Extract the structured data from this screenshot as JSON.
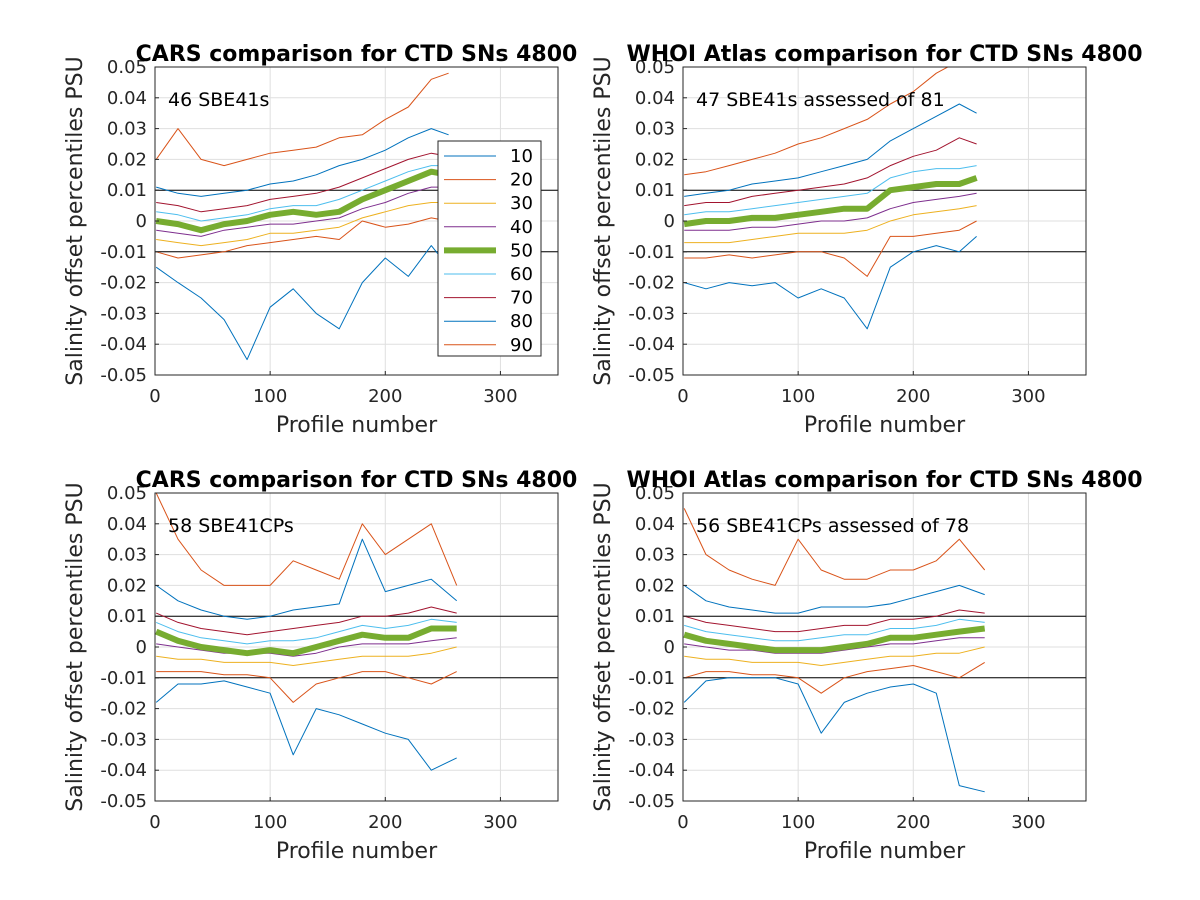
{
  "figure": {
    "background": "#ffffff"
  },
  "percentile_colors": {
    "10": "#0072BD",
    "20": "#D95319",
    "30": "#EDB120",
    "40": "#7E2F8E",
    "50": "#77AC30",
    "60": "#4DBEEE",
    "70": "#A2142F",
    "80": "#0072BD",
    "90": "#D95319"
  },
  "chart_data": [
    {
      "type": "line",
      "title": "CARS comparison for CTD SNs 4800",
      "annotation": "46 SBE41s",
      "xlabel": "Profile number",
      "ylabel": "Salinity offset percentiles PSU",
      "xlim": [
        0,
        350
      ],
      "ylim": [
        -0.05,
        0.05
      ],
      "xticks": [
        "0",
        "100",
        "200",
        "300"
      ],
      "yticks": [
        "-0.05",
        "-0.04",
        "-0.03",
        "-0.02",
        "-0.01",
        "0",
        "0.01",
        "0.02",
        "0.03",
        "0.04",
        "0.05"
      ],
      "grid": true,
      "reference_lines": [
        -0.01,
        0.01
      ],
      "legend": {
        "placement": "inside-right",
        "entries": [
          "10",
          "20",
          "30",
          "40",
          "50",
          "60",
          "70",
          "80",
          "90"
        ]
      },
      "x": [
        1,
        20,
        40,
        60,
        80,
        100,
        120,
        140,
        160,
        180,
        200,
        220,
        240,
        255
      ],
      "series": [
        {
          "name": "10",
          "values": [
            -0.015,
            -0.02,
            -0.025,
            -0.032,
            -0.045,
            -0.028,
            -0.022,
            -0.03,
            -0.035,
            -0.02,
            -0.012,
            -0.018,
            -0.008,
            -0.015
          ]
        },
        {
          "name": "20",
          "values": [
            -0.01,
            -0.012,
            -0.011,
            -0.01,
            -0.008,
            -0.007,
            -0.006,
            -0.005,
            -0.006,
            0.0,
            -0.002,
            -0.001,
            0.001,
            0.0
          ]
        },
        {
          "name": "30",
          "values": [
            -0.006,
            -0.007,
            -0.008,
            -0.007,
            -0.006,
            -0.004,
            -0.004,
            -0.003,
            -0.002,
            0.001,
            0.003,
            0.005,
            0.006,
            0.006
          ]
        },
        {
          "name": "40",
          "values": [
            -0.003,
            -0.004,
            -0.005,
            -0.003,
            -0.002,
            -0.001,
            -0.001,
            0.0,
            0.001,
            0.004,
            0.006,
            0.009,
            0.011,
            0.011
          ]
        },
        {
          "name": "50",
          "values": [
            0.0,
            -0.001,
            -0.003,
            -0.001,
            0.0,
            0.002,
            0.003,
            0.002,
            0.003,
            0.007,
            0.01,
            0.013,
            0.016,
            0.015
          ]
        },
        {
          "name": "60",
          "values": [
            0.003,
            0.002,
            0.0,
            0.001,
            0.002,
            0.004,
            0.005,
            0.005,
            0.007,
            0.01,
            0.013,
            0.016,
            0.018,
            0.018
          ]
        },
        {
          "name": "70",
          "values": [
            0.006,
            0.005,
            0.003,
            0.004,
            0.005,
            0.007,
            0.008,
            0.009,
            0.011,
            0.014,
            0.017,
            0.02,
            0.022,
            0.021
          ]
        },
        {
          "name": "80",
          "values": [
            0.011,
            0.009,
            0.008,
            0.009,
            0.01,
            0.012,
            0.013,
            0.015,
            0.018,
            0.02,
            0.023,
            0.027,
            0.03,
            0.028
          ]
        },
        {
          "name": "90",
          "values": [
            0.02,
            0.03,
            0.02,
            0.018,
            0.02,
            0.022,
            0.023,
            0.024,
            0.027,
            0.028,
            0.033,
            0.037,
            0.046,
            0.048
          ]
        }
      ]
    },
    {
      "type": "line",
      "title": "WHOI Atlas comparison for CTD SNs 4800",
      "annotation": "47 SBE41s assessed of 81",
      "xlabel": "Profile number",
      "ylabel": "Salinity offset percentiles PSU",
      "xlim": [
        0,
        350
      ],
      "ylim": [
        -0.05,
        0.05
      ],
      "xticks": [
        "0",
        "100",
        "200",
        "300"
      ],
      "yticks": [
        "-0.05",
        "-0.04",
        "-0.03",
        "-0.02",
        "-0.01",
        "0",
        "0.01",
        "0.02",
        "0.03",
        "0.04",
        "0.05"
      ],
      "grid": true,
      "reference_lines": [
        -0.01,
        0.01
      ],
      "x": [
        1,
        20,
        40,
        60,
        80,
        100,
        120,
        140,
        160,
        180,
        200,
        220,
        240,
        255
      ],
      "series": [
        {
          "name": "10",
          "values": [
            -0.02,
            -0.022,
            -0.02,
            -0.021,
            -0.02,
            -0.025,
            -0.022,
            -0.025,
            -0.035,
            -0.015,
            -0.01,
            -0.008,
            -0.01,
            -0.005
          ]
        },
        {
          "name": "20",
          "values": [
            -0.012,
            -0.012,
            -0.011,
            -0.012,
            -0.011,
            -0.01,
            -0.01,
            -0.012,
            -0.018,
            -0.005,
            -0.005,
            -0.004,
            -0.003,
            0.0
          ]
        },
        {
          "name": "30",
          "values": [
            -0.007,
            -0.007,
            -0.007,
            -0.006,
            -0.005,
            -0.004,
            -0.004,
            -0.004,
            -0.003,
            0.0,
            0.002,
            0.003,
            0.004,
            0.005
          ]
        },
        {
          "name": "40",
          "values": [
            -0.003,
            -0.003,
            -0.003,
            -0.002,
            -0.002,
            -0.001,
            0.0,
            0.0,
            0.001,
            0.004,
            0.006,
            0.007,
            0.008,
            0.009
          ]
        },
        {
          "name": "50",
          "values": [
            -0.001,
            0.0,
            0.0,
            0.001,
            0.001,
            0.002,
            0.003,
            0.004,
            0.004,
            0.01,
            0.011,
            0.012,
            0.012,
            0.014
          ]
        },
        {
          "name": "60",
          "values": [
            0.002,
            0.003,
            0.003,
            0.004,
            0.005,
            0.006,
            0.007,
            0.008,
            0.009,
            0.014,
            0.016,
            0.017,
            0.017,
            0.018
          ]
        },
        {
          "name": "70",
          "values": [
            0.005,
            0.006,
            0.006,
            0.008,
            0.009,
            0.01,
            0.011,
            0.012,
            0.014,
            0.018,
            0.021,
            0.023,
            0.027,
            0.025
          ]
        },
        {
          "name": "80",
          "values": [
            0.008,
            0.009,
            0.01,
            0.012,
            0.013,
            0.014,
            0.016,
            0.018,
            0.02,
            0.026,
            0.03,
            0.034,
            0.038,
            0.035
          ]
        },
        {
          "name": "90",
          "values": [
            0.015,
            0.016,
            0.018,
            0.02,
            0.022,
            0.025,
            0.027,
            0.03,
            0.033,
            0.038,
            0.042,
            0.048,
            0.052,
            0.052
          ]
        }
      ]
    },
    {
      "type": "line",
      "title": "CARS comparison for CTD SNs 4800",
      "annotation": "58 SBE41CPs",
      "xlabel": "Profile number",
      "ylabel": "Salinity offset percentiles PSU",
      "xlim": [
        0,
        350
      ],
      "ylim": [
        -0.05,
        0.05
      ],
      "xticks": [
        "0",
        "100",
        "200",
        "300"
      ],
      "yticks": [
        "-0.05",
        "-0.04",
        "-0.03",
        "-0.02",
        "-0.01",
        "0",
        "0.01",
        "0.02",
        "0.03",
        "0.04",
        "0.05"
      ],
      "grid": true,
      "reference_lines": [
        -0.01,
        0.01
      ],
      "x": [
        1,
        20,
        40,
        60,
        80,
        100,
        120,
        140,
        160,
        180,
        200,
        220,
        240,
        262
      ],
      "series": [
        {
          "name": "10",
          "values": [
            -0.018,
            -0.012,
            -0.012,
            -0.011,
            -0.013,
            -0.015,
            -0.035,
            -0.02,
            -0.022,
            -0.025,
            -0.028,
            -0.03,
            -0.04,
            -0.036
          ]
        },
        {
          "name": "20",
          "values": [
            -0.008,
            -0.008,
            -0.008,
            -0.009,
            -0.009,
            -0.01,
            -0.018,
            -0.012,
            -0.01,
            -0.008,
            -0.008,
            -0.01,
            -0.012,
            -0.008
          ]
        },
        {
          "name": "30",
          "values": [
            -0.003,
            -0.004,
            -0.004,
            -0.005,
            -0.005,
            -0.005,
            -0.006,
            -0.005,
            -0.004,
            -0.003,
            -0.003,
            -0.003,
            -0.002,
            0.0
          ]
        },
        {
          "name": "40",
          "values": [
            0.001,
            0.0,
            -0.001,
            -0.002,
            -0.002,
            -0.002,
            -0.003,
            -0.002,
            0.0,
            0.001,
            0.001,
            0.001,
            0.002,
            0.003
          ]
        },
        {
          "name": "50",
          "values": [
            0.005,
            0.002,
            0.0,
            -0.001,
            -0.002,
            -0.001,
            -0.002,
            0.0,
            0.002,
            0.004,
            0.003,
            0.003,
            0.006,
            0.006
          ]
        },
        {
          "name": "60",
          "values": [
            0.008,
            0.005,
            0.003,
            0.002,
            0.001,
            0.002,
            0.002,
            0.003,
            0.005,
            0.007,
            0.006,
            0.007,
            0.009,
            0.008
          ]
        },
        {
          "name": "70",
          "values": [
            0.011,
            0.008,
            0.006,
            0.005,
            0.004,
            0.005,
            0.006,
            0.007,
            0.008,
            0.01,
            0.01,
            0.011,
            0.013,
            0.011
          ]
        },
        {
          "name": "80",
          "values": [
            0.02,
            0.015,
            0.012,
            0.01,
            0.009,
            0.01,
            0.012,
            0.013,
            0.014,
            0.035,
            0.018,
            0.02,
            0.022,
            0.015
          ]
        },
        {
          "name": "90",
          "values": [
            0.05,
            0.035,
            0.025,
            0.02,
            0.02,
            0.02,
            0.028,
            0.025,
            0.022,
            0.04,
            0.03,
            0.035,
            0.04,
            0.02
          ]
        }
      ]
    },
    {
      "type": "line",
      "title": "WHOI Atlas comparison for CTD SNs 4800",
      "annotation": "56 SBE41CPs assessed of 78",
      "xlabel": "Profile number",
      "ylabel": "Salinity offset percentiles PSU",
      "xlim": [
        0,
        350
      ],
      "ylim": [
        -0.05,
        0.05
      ],
      "xticks": [
        "0",
        "100",
        "200",
        "300"
      ],
      "yticks": [
        "-0.05",
        "-0.04",
        "-0.03",
        "-0.02",
        "-0.01",
        "0",
        "0.01",
        "0.02",
        "0.03",
        "0.04",
        "0.05"
      ],
      "grid": true,
      "reference_lines": [
        -0.01,
        0.01
      ],
      "x": [
        1,
        20,
        40,
        60,
        80,
        100,
        120,
        140,
        160,
        180,
        200,
        220,
        240,
        262
      ],
      "series": [
        {
          "name": "10",
          "values": [
            -0.018,
            -0.011,
            -0.01,
            -0.01,
            -0.01,
            -0.012,
            -0.028,
            -0.018,
            -0.015,
            -0.013,
            -0.012,
            -0.015,
            -0.045,
            -0.047
          ]
        },
        {
          "name": "20",
          "values": [
            -0.01,
            -0.008,
            -0.008,
            -0.009,
            -0.009,
            -0.01,
            -0.015,
            -0.01,
            -0.008,
            -0.007,
            -0.006,
            -0.008,
            -0.01,
            -0.005
          ]
        },
        {
          "name": "30",
          "values": [
            -0.003,
            -0.004,
            -0.004,
            -0.005,
            -0.005,
            -0.005,
            -0.006,
            -0.005,
            -0.004,
            -0.003,
            -0.003,
            -0.002,
            -0.002,
            0.0
          ]
        },
        {
          "name": "40",
          "values": [
            0.001,
            0.0,
            -0.001,
            -0.001,
            -0.002,
            -0.002,
            -0.002,
            -0.001,
            0.0,
            0.001,
            0.001,
            0.002,
            0.003,
            0.003
          ]
        },
        {
          "name": "50",
          "values": [
            0.004,
            0.002,
            0.001,
            0.0,
            -0.001,
            -0.001,
            -0.001,
            0.0,
            0.001,
            0.003,
            0.003,
            0.004,
            0.005,
            0.006
          ]
        },
        {
          "name": "60",
          "values": [
            0.007,
            0.005,
            0.004,
            0.003,
            0.002,
            0.002,
            0.003,
            0.004,
            0.004,
            0.006,
            0.006,
            0.007,
            0.009,
            0.008
          ]
        },
        {
          "name": "70",
          "values": [
            0.01,
            0.008,
            0.007,
            0.006,
            0.005,
            0.005,
            0.006,
            0.007,
            0.007,
            0.009,
            0.009,
            0.01,
            0.012,
            0.011
          ]
        },
        {
          "name": "80",
          "values": [
            0.02,
            0.015,
            0.013,
            0.012,
            0.011,
            0.011,
            0.013,
            0.013,
            0.013,
            0.014,
            0.016,
            0.018,
            0.02,
            0.017
          ]
        },
        {
          "name": "90",
          "values": [
            0.045,
            0.03,
            0.025,
            0.022,
            0.02,
            0.035,
            0.025,
            0.022,
            0.022,
            0.025,
            0.025,
            0.028,
            0.035,
            0.025
          ]
        }
      ]
    }
  ]
}
